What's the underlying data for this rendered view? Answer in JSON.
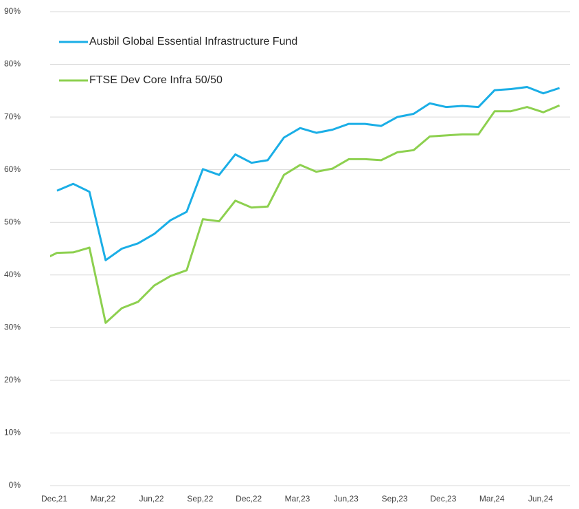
{
  "chart_data": {
    "type": "line",
    "categories": [
      null,
      "Dec,21",
      null,
      null,
      "Mar,22",
      null,
      null,
      "Jun,22",
      null,
      null,
      "Sep,22",
      null,
      null,
      "Dec,22",
      null,
      null,
      "Mar,23",
      null,
      null,
      "Jun,23",
      null,
      null,
      "Sep,23",
      null,
      null,
      "Dec,23",
      null,
      null,
      "Mar,24",
      null,
      null,
      "Jun,24",
      null
    ],
    "series": [
      {
        "name": "Ausbil Global Essential Infrastructure Fund",
        "color": "#1aaee6",
        "values": [
          null,
          56.0,
          57.3,
          55.8,
          42.8,
          45.0,
          46.0,
          47.8,
          50.4,
          52.0,
          60.1,
          59.0,
          62.9,
          61.3,
          61.8,
          66.1,
          67.9,
          67.0,
          67.6,
          68.7,
          68.7,
          68.3,
          70.0,
          70.6,
          72.6,
          71.9,
          72.1,
          71.9,
          75.1,
          75.3,
          75.7,
          74.5,
          75.5
        ]
      },
      {
        "name": "FTSE Dev Core Infra 50/50",
        "color": "#8dd04f",
        "values": [
          42.7,
          44.2,
          44.3,
          45.2,
          30.9,
          33.7,
          34.9,
          38.0,
          39.8,
          40.9,
          50.6,
          50.2,
          54.1,
          52.8,
          53.0,
          59.0,
          60.9,
          59.6,
          60.2,
          62.0,
          62.0,
          61.8,
          63.3,
          63.7,
          66.3,
          66.5,
          66.7,
          66.7,
          71.1,
          71.1,
          71.9,
          70.9,
          72.2
        ]
      }
    ],
    "ylim": [
      0,
      90
    ],
    "yticks": [
      {
        "value": 0,
        "label": "0%"
      },
      {
        "value": 10,
        "label": "10%"
      },
      {
        "value": 20,
        "label": "20%"
      },
      {
        "value": 30,
        "label": "30%"
      },
      {
        "value": 40,
        "label": "40%"
      },
      {
        "value": 50,
        "label": "50%"
      },
      {
        "value": 60,
        "label": "60%"
      },
      {
        "value": 70,
        "label": "70%"
      },
      {
        "value": 80,
        "label": "80%"
      },
      {
        "value": 90,
        "label": "90%"
      }
    ],
    "grid": true,
    "legend": "top-left"
  }
}
